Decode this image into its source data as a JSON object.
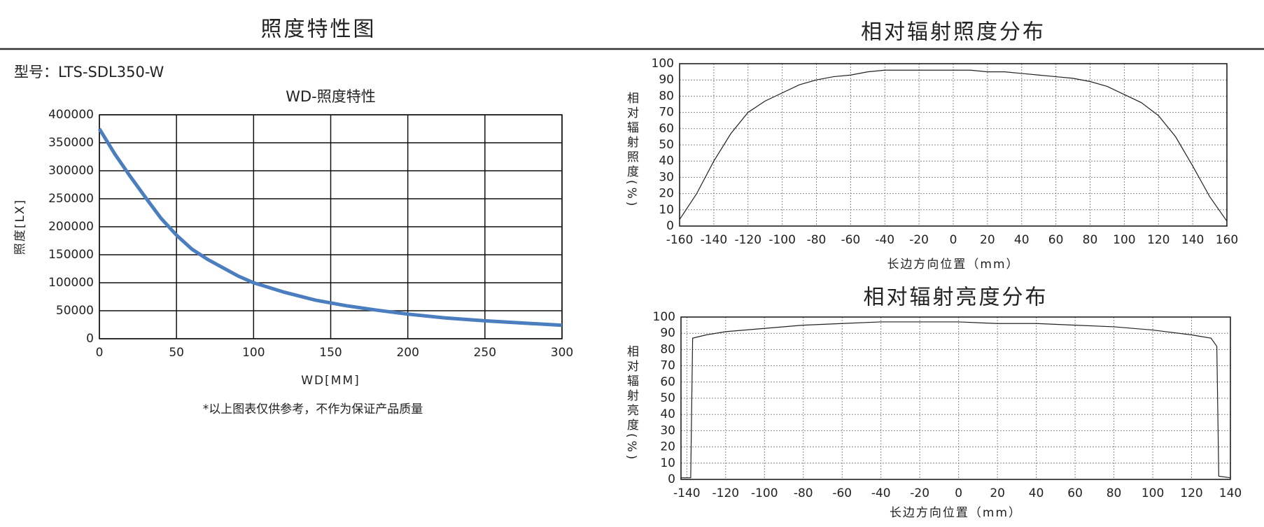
{
  "page": {
    "left_title": "照度特性图",
    "model": "型号：LTS-SDL350-W",
    "note": "*以上图表仅供参考，不作为保证产品质量"
  },
  "chart_data": [
    {
      "type": "line",
      "title": "WD-照度特性",
      "x_label": "WD[MM]",
      "y_label": "照度[LX]",
      "title_size": "mid",
      "y_label_style": "rotated",
      "grid_style": "solid",
      "x": [
        0,
        10,
        20,
        30,
        40,
        50,
        60,
        70,
        80,
        90,
        100,
        120,
        140,
        160,
        180,
        200,
        225,
        250,
        275,
        300
      ],
      "series": [
        {
          "name": "WD-照度特性",
          "color": "#4a7ebf",
          "values": [
            375000,
            330000,
            290000,
            252000,
            215000,
            185000,
            160000,
            142000,
            127000,
            112000,
            100000,
            83000,
            69000,
            59000,
            51000,
            44000,
            37000,
            32000,
            28000,
            24000
          ]
        }
      ],
      "xlim": [
        0,
        300
      ],
      "xticks": [
        0,
        50,
        100,
        150,
        200,
        250,
        300
      ],
      "ylim": [
        0,
        400000
      ],
      "yticks": [
        0,
        50000,
        100000,
        150000,
        200000,
        250000,
        300000,
        350000,
        400000
      ]
    },
    {
      "type": "line",
      "title": "相对辐射照度分布",
      "x_label": "长边方向位置（mm）",
      "y_label": "相对辐射照度(%)",
      "title_size": "big",
      "y_label_style": "vertical",
      "grid_style": "dotted",
      "x": [
        -160,
        -150,
        -140,
        -130,
        -120,
        -110,
        -100,
        -90,
        -80,
        -70,
        -60,
        -50,
        -40,
        -30,
        -20,
        -10,
        0,
        10,
        20,
        30,
        40,
        50,
        60,
        70,
        80,
        90,
        100,
        110,
        120,
        130,
        140,
        150,
        160
      ],
      "series": [
        {
          "name": "相对辐射照度",
          "color": "#222222",
          "values": [
            4,
            20,
            40,
            57,
            70,
            77,
            82,
            87,
            90,
            92,
            93,
            95,
            96,
            96,
            96,
            96,
            96,
            96,
            95,
            95,
            94,
            93,
            92,
            91,
            89,
            86,
            81,
            76,
            68,
            55,
            37,
            18,
            3
          ]
        }
      ],
      "xlim": [
        -160,
        160
      ],
      "xticks": [
        -160,
        -140,
        -120,
        -100,
        -80,
        -60,
        -40,
        -20,
        0,
        20,
        40,
        60,
        80,
        100,
        120,
        140,
        160
      ],
      "ylim": [
        0,
        100
      ],
      "yticks": [
        0,
        10,
        20,
        30,
        40,
        50,
        60,
        70,
        80,
        90,
        100
      ]
    },
    {
      "type": "line",
      "title": "相对辐射亮度分布",
      "x_label": "长边方向位置（mm）",
      "y_label": "相对辐射亮度(%)",
      "title_size": "big",
      "y_label_style": "vertical",
      "grid_style": "dotted",
      "x": [
        -143,
        -138,
        -137,
        -130,
        -120,
        -100,
        -80,
        -60,
        -40,
        -20,
        0,
        20,
        40,
        60,
        80,
        100,
        120,
        130,
        133,
        134,
        140
      ],
      "series": [
        {
          "name": "相对辐射亮度",
          "color": "#222222",
          "values": [
            1,
            1,
            87,
            89,
            91,
            93,
            95,
            96,
            97,
            97,
            97,
            96,
            96,
            95,
            94,
            92,
            89,
            87,
            82,
            2,
            1
          ]
        }
      ],
      "xlim": [
        -143,
        140
      ],
      "xticks": [
        -140,
        -120,
        -100,
        -80,
        -60,
        -40,
        -20,
        0,
        20,
        40,
        60,
        80,
        100,
        120,
        140
      ],
      "ylim": [
        0,
        100
      ],
      "yticks": [
        0,
        10,
        20,
        30,
        40,
        50,
        60,
        70,
        80,
        90,
        100
      ]
    }
  ]
}
